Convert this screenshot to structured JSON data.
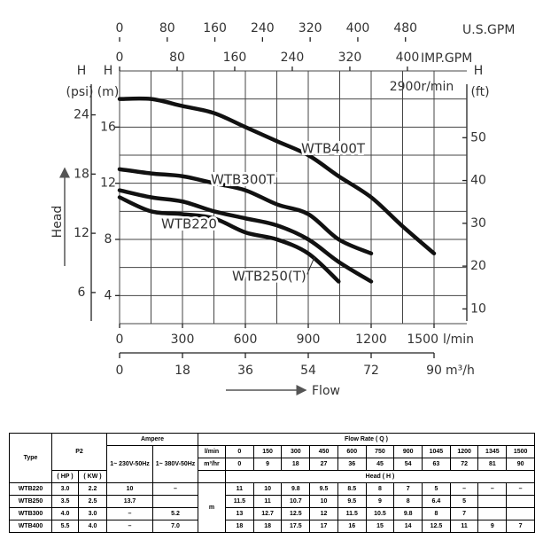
{
  "chart_data": {
    "type": "line",
    "color": "#111111",
    "x": [
      0,
      150,
      300,
      450,
      600,
      750,
      900,
      1045,
      1200,
      1345,
      1500
    ],
    "xlim": [
      0,
      1500
    ],
    "xticks": [
      0,
      300,
      600,
      900,
      1200,
      1500
    ],
    "x_unit": "l/min",
    "xgrid": [
      0,
      150,
      300,
      450,
      600,
      750,
      900,
      1050,
      1200,
      1350,
      1500
    ],
    "ylim": [
      2,
      20
    ],
    "yticks": [
      4,
      8,
      12,
      16
    ],
    "y_label_top": "H",
    "y_label": "(m)",
    "ygrid": [
      2,
      4,
      6,
      8,
      10,
      12,
      14,
      16,
      18,
      20
    ],
    "grid": true,
    "speed": "2900r/min",
    "head_label": "Head",
    "flow_label": "Flow",
    "series": [
      {
        "name": "WTB220",
        "values": [
          11,
          10,
          9.8,
          9.5,
          8.5,
          8,
          7,
          5,
          null,
          null,
          null
        ]
      },
      {
        "name": "WTB250(T)",
        "values": [
          11.5,
          11,
          10.7,
          10,
          9.5,
          9,
          8,
          6.4,
          5,
          null,
          null
        ]
      },
      {
        "name": "WTB300T",
        "values": [
          13,
          12.7,
          12.5,
          12,
          11.5,
          10.5,
          9.8,
          8,
          7,
          null,
          null
        ]
      },
      {
        "name": "WTB400T",
        "values": [
          18,
          18,
          17.5,
          17,
          16,
          15,
          14,
          12.5,
          11,
          9,
          7
        ]
      }
    ],
    "axes": {
      "psi": {
        "label_top": "H",
        "label": "(psi)",
        "ylim": [
          2.845,
          28.45
        ],
        "yticks": [
          6,
          12,
          18,
          24
        ]
      },
      "ft": {
        "label_top": "H",
        "label": "(ft)",
        "ylim": [
          6.56,
          65.6
        ],
        "yticks": [
          10,
          20,
          30,
          40,
          50
        ]
      },
      "usgpm": {
        "label": "U.S.GPM",
        "xlim": [
          0,
          528
        ],
        "xticks": [
          0,
          80,
          160,
          240,
          320,
          400,
          480
        ]
      },
      "impgpm": {
        "label": "IMP.GPM",
        "xlim": [
          0,
          437
        ],
        "xticks": [
          0,
          80,
          160,
          240,
          320,
          400
        ]
      },
      "m3h": {
        "label": "m³/h",
        "xlim": [
          0,
          90
        ],
        "xticks": [
          0,
          18,
          36,
          54,
          72,
          90
        ]
      }
    }
  },
  "table": {
    "type_header": "Type",
    "p2_header": "P2",
    "ampere_header": "Ampere",
    "flow_header": "Flow Rate ( Q )",
    "hp_header": "( HP )",
    "kw_header": "( KW )",
    "v230_header": "1~ 230V-50Hz",
    "v380_header": "1~ 380V-50Hz",
    "lmin_label": "l/min",
    "m3h_label": "m³/hr",
    "head_header": "Head ( H )",
    "head_unit": "m",
    "lmin": [
      "0",
      "150",
      "300",
      "450",
      "600",
      "750",
      "900",
      "1045",
      "1200",
      "1345",
      "1500"
    ],
    "m3h": [
      "0",
      "9",
      "18",
      "27",
      "36",
      "45",
      "54",
      "63",
      "72",
      "81",
      "90"
    ],
    "rows": [
      [
        "WTB220",
        "3.0",
        "2.2",
        "10",
        "–",
        "11",
        "10",
        "9.8",
        "9.5",
        "8.5",
        "8",
        "7",
        "5",
        "–",
        "–",
        "–"
      ],
      [
        "WTB250",
        "3.5",
        "2.5",
        "13.7",
        null,
        "11.5",
        "11",
        "10.7",
        "10",
        "9.5",
        "9",
        "8",
        "6.4",
        "5",
        null,
        null
      ],
      [
        "WTB300",
        "4.0",
        "3.0",
        "–",
        "5.2",
        "13",
        "12.7",
        "12.5",
        "12",
        "11.5",
        "10.5",
        "9.8",
        "8",
        "7",
        null,
        null
      ],
      [
        "WTB400",
        "5.5",
        "4.0",
        "–",
        "7.0",
        "18",
        "18",
        "17.5",
        "17",
        "16",
        "15",
        "14",
        "12.5",
        "11",
        "9",
        "7"
      ]
    ]
  }
}
